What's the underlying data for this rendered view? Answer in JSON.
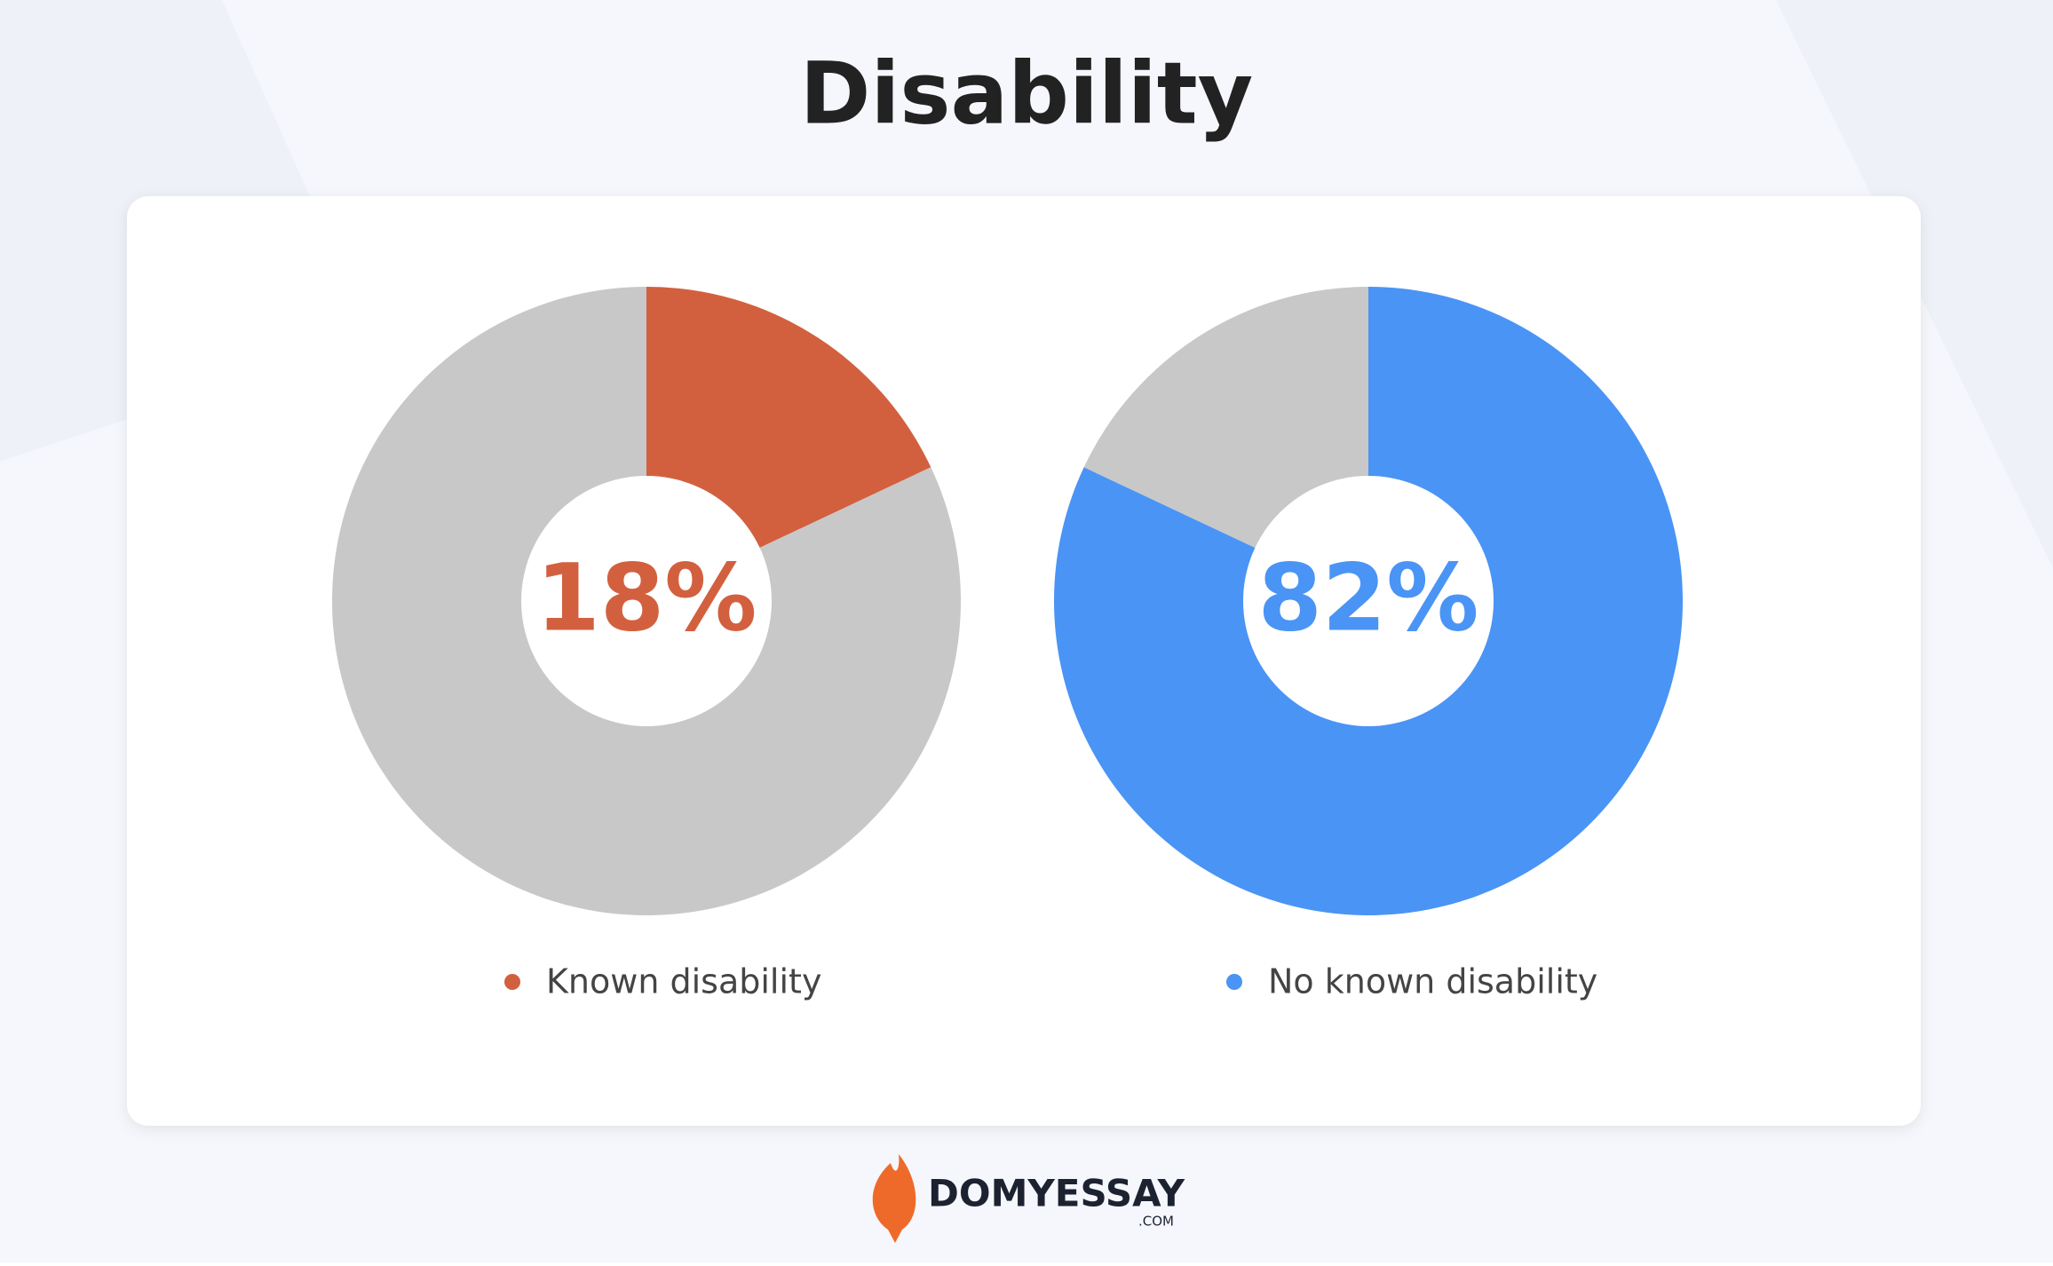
{
  "title": "Disability",
  "chart_data": [
    {
      "type": "donut",
      "categories": [
        "Known disability",
        null
      ],
      "values": [
        18,
        82
      ],
      "value_labels": [
        "18%",
        null
      ],
      "colors": [
        "#d2603f",
        "#c8c8c8"
      ]
    },
    {
      "type": "donut",
      "categories": [
        "No known disability",
        null
      ],
      "values": [
        82,
        18
      ],
      "value_labels": [
        "82%",
        null
      ],
      "colors": [
        "#4a94f5",
        "#c8c8c8"
      ]
    }
  ],
  "footer": {
    "brand": "DOMYESSAY",
    "domain": ".COM"
  }
}
